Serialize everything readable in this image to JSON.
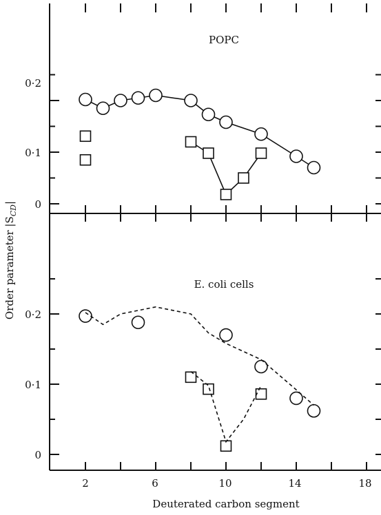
{
  "xlabel": "Deuterated carbon segment",
  "ylabel": "Order parameter |S_CD|",
  "ylabel_main": "Order parameter |S",
  "ylabel_sub": "CD",
  "ylabel_end": "|",
  "chart_data": [
    {
      "type": "scatter",
      "title": "POPC",
      "x_ticks": [
        2,
        6,
        10,
        14,
        18
      ],
      "y_ticks": [
        "0",
        "0·1",
        "0·2"
      ],
      "xlim": [
        0.5,
        19
      ],
      "ylim": [
        -0.01,
        0.32
      ],
      "series": [
        {
          "marker": "circle",
          "line": "solid",
          "x": [
            2,
            3,
            4,
            5,
            6,
            8,
            9,
            10,
            12,
            14,
            15
          ],
          "y": [
            0.202,
            0.185,
            0.2,
            0.205,
            0.21,
            0.2,
            0.173,
            0.158,
            0.135,
            0.092,
            0.07
          ]
        },
        {
          "marker": "square",
          "line": "none",
          "x": [
            2,
            2
          ],
          "y": [
            0.131,
            0.085
          ]
        },
        {
          "marker": "square",
          "line": "solid",
          "x": [
            8,
            9,
            10,
            11,
            12
          ],
          "y": [
            0.12,
            0.098,
            0.018,
            0.05,
            0.098
          ]
        }
      ]
    },
    {
      "type": "scatter",
      "title": "E. coli cells",
      "x_ticks": [
        2,
        6,
        10,
        14,
        18
      ],
      "y_ticks": [
        "0",
        "0·1",
        "0·2"
      ],
      "xlim": [
        0.5,
        19
      ],
      "ylim": [
        -0.05,
        0.32
      ],
      "series": [
        {
          "marker": "circle",
          "line": "none",
          "x": [
            2,
            5,
            10,
            12,
            14,
            15
          ],
          "y": [
            0.197,
            0.188,
            0.17,
            0.125,
            0.08,
            0.062
          ]
        },
        {
          "marker": "none",
          "line": "dashed",
          "x": [
            2,
            3,
            4,
            5,
            6,
            8,
            9,
            10,
            12,
            14,
            15
          ],
          "y": [
            0.202,
            0.185,
            0.2,
            0.205,
            0.21,
            0.2,
            0.173,
            0.158,
            0.135,
            0.092,
            0.07
          ]
        },
        {
          "marker": "square",
          "line": "none",
          "x": [
            8,
            9,
            10,
            12
          ],
          "y": [
            0.11,
            0.093,
            0.012,
            0.086
          ]
        },
        {
          "marker": "none",
          "line": "dashed",
          "x": [
            8,
            9,
            10,
            11,
            12
          ],
          "y": [
            0.118,
            0.098,
            0.018,
            0.05,
            0.098
          ]
        }
      ]
    }
  ]
}
